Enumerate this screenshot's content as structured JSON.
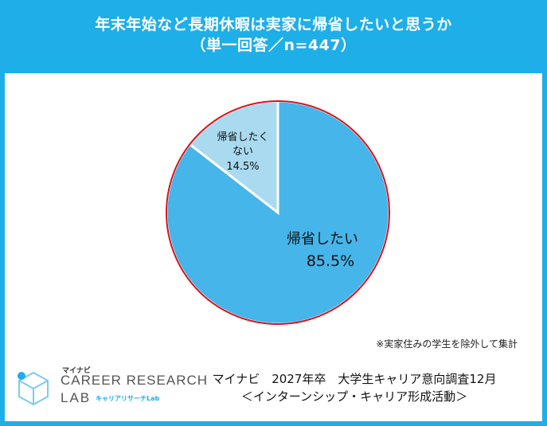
{
  "title": {
    "line1": "年末年始など長期休暇は実家に帰省したいと思うか",
    "line2": "（単一回答／n=447）"
  },
  "colors": {
    "header": "#1EAEE8",
    "slice_main": "#46B5EA",
    "slice_minor": "#A9DAEF",
    "pie_border": "#D7141C"
  },
  "chart_data": {
    "type": "pie",
    "slices": [
      {
        "label": "帰省したい",
        "value": 85.5,
        "value_label": "85.5%",
        "color": "#46B5EA"
      },
      {
        "label": "帰省したくない",
        "value": 14.5,
        "value_label": "14.5%",
        "color": "#A9DAEF"
      }
    ]
  },
  "labels": {
    "minor_line1": "帰省したく",
    "minor_line2": "ない"
  },
  "note": "※実家住みの学生を除外して集計",
  "logo": {
    "brand_small": "マイナビ",
    "line1": "CAREER RESEARCH",
    "line2": "LAB",
    "sub": "キャリアリサーチLab"
  },
  "source": {
    "line1": "マイナビ　2027年卒　大学生キャリア意向調査12月",
    "line2": "＜インターンシップ・キャリア形成活動＞"
  }
}
